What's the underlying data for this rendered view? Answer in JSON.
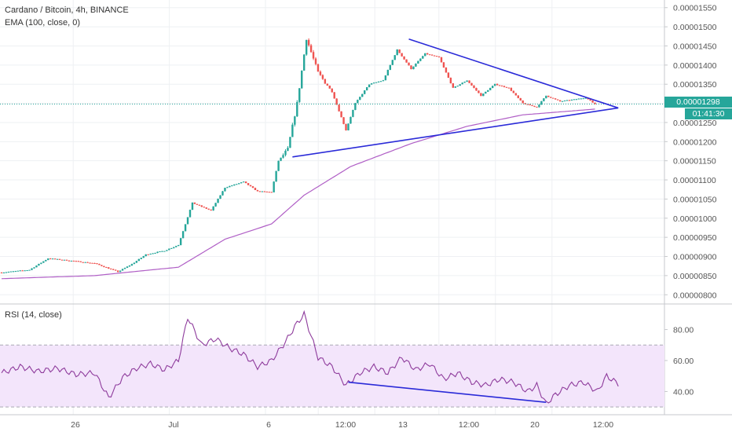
{
  "header": {
    "symbol_line": "Cardano / Bitcoin, 4h, BINANCE",
    "ema_label": "EMA (100, close, 0)",
    "rsi_label": "RSI (14, close)"
  },
  "price_tags": {
    "last_price": "0.00001298",
    "countdown": "01:41:30",
    "color": "#26a69a"
  },
  "colors": {
    "up": "#26a69a",
    "down": "#ef5350",
    "ema": "#b05fc6",
    "trendline": "#2a2ad8",
    "rsi_line": "#8e3b9c",
    "rsi_band": "#f3e5fb",
    "grid": "#eef0f3"
  },
  "chart_data": [
    {
      "type": "candlestick",
      "xlabels": [
        "26",
        "Jul",
        "6",
        "12:00",
        "13",
        "12:00",
        "20",
        "12:00"
      ],
      "yticks": [
        "0.00001550",
        "0.00001500",
        "0.00001450",
        "0.00001400",
        "0.00001350",
        "0.00001300",
        "0.00001250",
        "0.00001200",
        "0.00001150",
        "0.00001100",
        "0.00001050",
        "0.00001000",
        "0.00000950",
        "0.00000900",
        "0.00000850",
        "0.00000800"
      ],
      "ylim": [
        7.8e-06,
        1.57e-05
      ],
      "last_price": 1.298e-05,
      "anchors": [
        [
          0,
          8.58e-06
        ],
        [
          12,
          8.65e-06
        ],
        [
          20,
          8.95e-06
        ],
        [
          28,
          8.9e-06
        ],
        [
          40,
          8.82e-06
        ],
        [
          50,
          8.6e-06
        ],
        [
          56,
          8.8e-06
        ],
        [
          62,
          9.05e-06
        ],
        [
          70,
          9.15e-06
        ],
        [
          76,
          9.3e-06
        ],
        [
          82,
          1.04e-05
        ],
        [
          90,
          1.02e-05
        ],
        [
          96,
          1.08e-05
        ],
        [
          104,
          1.095e-05
        ],
        [
          110,
          1.07e-05
        ],
        [
          116,
          1.068e-05
        ],
        [
          119,
          1.15e-05
        ],
        [
          123,
          1.18e-05
        ],
        [
          127,
          1.3e-05
        ],
        [
          131,
          1.47e-05
        ],
        [
          136,
          1.38e-05
        ],
        [
          142,
          1.33e-05
        ],
        [
          148,
          1.23e-05
        ],
        [
          152,
          1.3e-05
        ],
        [
          158,
          1.35e-05
        ],
        [
          164,
          1.36e-05
        ],
        [
          170,
          1.44e-05
        ],
        [
          176,
          1.39e-05
        ],
        [
          182,
          1.43e-05
        ],
        [
          188,
          1.42e-05
        ],
        [
          194,
          1.34e-05
        ],
        [
          200,
          1.36e-05
        ],
        [
          206,
          1.32e-05
        ],
        [
          212,
          1.35e-05
        ],
        [
          218,
          1.34e-05
        ],
        [
          224,
          1.3e-05
        ],
        [
          230,
          1.29e-05
        ],
        [
          234,
          1.32e-05
        ],
        [
          240,
          1.305e-05
        ],
        [
          246,
          1.31e-05
        ],
        [
          251,
          1.315e-05
        ],
        [
          255,
          1.298e-05
        ]
      ],
      "ema_anchors": [
        [
          0,
          8.42e-06
        ],
        [
          40,
          8.5e-06
        ],
        [
          76,
          8.72e-06
        ],
        [
          96,
          9.45e-06
        ],
        [
          116,
          9.85e-06
        ],
        [
          130,
          1.06e-05
        ],
        [
          150,
          1.135e-05
        ],
        [
          176,
          1.195e-05
        ],
        [
          200,
          1.24e-05
        ],
        [
          224,
          1.27e-05
        ],
        [
          255,
          1.285e-05
        ]
      ],
      "trendlines": [
        {
          "from": [
            175,
            1.468e-05
          ],
          "to": [
            265,
            1.288e-05
          ]
        },
        {
          "from": [
            125,
            1.16e-05
          ],
          "to": [
            265,
            1.288e-05
          ]
        }
      ]
    },
    {
      "type": "line",
      "name": "RSI (14, close)",
      "yticks": [
        "80.00",
        "60.00",
        "40.00"
      ],
      "ylim": [
        25,
        95
      ],
      "band": [
        30,
        70
      ],
      "anchors": [
        [
          0,
          52
        ],
        [
          8,
          56
        ],
        [
          16,
          53
        ],
        [
          24,
          55
        ],
        [
          32,
          51
        ],
        [
          40,
          52
        ],
        [
          46,
          36
        ],
        [
          52,
          49
        ],
        [
          58,
          55
        ],
        [
          64,
          58
        ],
        [
          70,
          54
        ],
        [
          76,
          60
        ],
        [
          80,
          88
        ],
        [
          86,
          70
        ],
        [
          92,
          74
        ],
        [
          98,
          68
        ],
        [
          104,
          64
        ],
        [
          110,
          56
        ],
        [
          116,
          60
        ],
        [
          122,
          72
        ],
        [
          126,
          82
        ],
        [
          130,
          90
        ],
        [
          136,
          62
        ],
        [
          142,
          56
        ],
        [
          148,
          44
        ],
        [
          154,
          52
        ],
        [
          160,
          56
        ],
        [
          166,
          52
        ],
        [
          172,
          62
        ],
        [
          178,
          54
        ],
        [
          184,
          58
        ],
        [
          190,
          48
        ],
        [
          196,
          52
        ],
        [
          202,
          46
        ],
        [
          208,
          44
        ],
        [
          214,
          48
        ],
        [
          220,
          46
        ],
        [
          226,
          40
        ],
        [
          230,
          44
        ],
        [
          234,
          32
        ],
        [
          238,
          38
        ],
        [
          244,
          44
        ],
        [
          250,
          46
        ],
        [
          256,
          40
        ],
        [
          260,
          50
        ],
        [
          265,
          45
        ]
      ],
      "trendline": {
        "from": [
          149,
          46
        ],
        "to": [
          234,
          33
        ]
      }
    }
  ]
}
